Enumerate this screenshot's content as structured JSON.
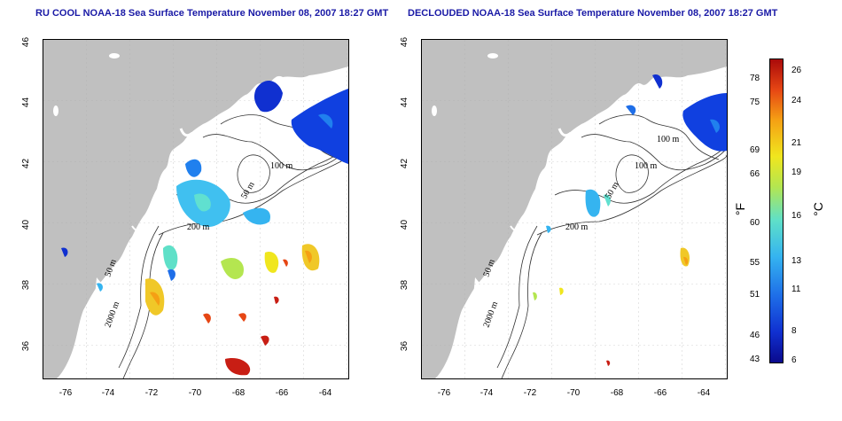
{
  "maps": [
    {
      "title": "RU COOL NOAA-18 Sea Surface Temperature November 08, 2007 18:27 GMT",
      "contour_labels": [
        "100 m",
        "50 m",
        "200 m",
        "50 m",
        "2000 m"
      ]
    },
    {
      "title": "DECLOUDED NOAA-18 Sea Surface Temperature November 08, 2007 18:27 GMT",
      "contour_labels": [
        "100 m",
        "100 m",
        "50 m",
        "200 m",
        "50 m",
        "2000 m"
      ]
    }
  ],
  "axes": {
    "x_ticks": [
      "-76",
      "-74",
      "-72",
      "-70",
      "-68",
      "-66",
      "-64"
    ],
    "y_ticks": [
      "36",
      "38",
      "40",
      "42",
      "44",
      "46"
    ],
    "lon_range": [
      -77.2,
      -63.0
    ],
    "lat_range": [
      35.0,
      46.0
    ]
  },
  "colorbar": {
    "fahrenheit_ticks": [
      "78",
      "75",
      "69",
      "66",
      "60",
      "55",
      "51",
      "46",
      "43"
    ],
    "celsius_ticks": [
      "26",
      "24",
      "21",
      "19",
      "16",
      "13",
      "11",
      "8",
      "6"
    ],
    "fahrenheit_unit": "°F",
    "celsius_unit": "°C",
    "colors": [
      "#0a0a8c",
      "#1030d0",
      "#1e6ee8",
      "#35b4f0",
      "#5fe0c8",
      "#b4e650",
      "#f0e61e",
      "#f5a014",
      "#e64614",
      "#aa0a0a"
    ]
  }
}
